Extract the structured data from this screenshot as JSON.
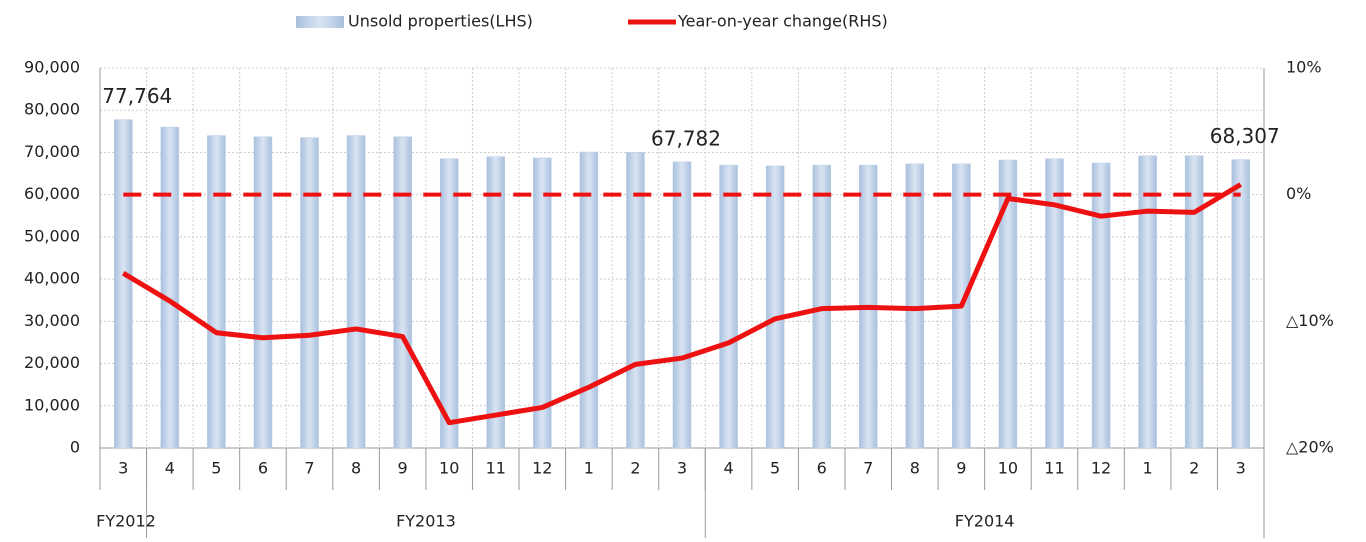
{
  "chart_data": {
    "type": "bar_line",
    "categories": [
      "3",
      "4",
      "5",
      "6",
      "7",
      "8",
      "9",
      "10",
      "11",
      "12",
      "1",
      "2",
      "3",
      "4",
      "5",
      "6",
      "7",
      "8",
      "9",
      "10",
      "11",
      "12",
      "1",
      "2",
      "3"
    ],
    "groups": [
      {
        "label": "FY2012",
        "span": 1
      },
      {
        "label": "FY2013",
        "span": 12
      },
      {
        "label": "FY2014",
        "span": 12
      }
    ],
    "series": [
      {
        "name": "Unsold properties(LHS)",
        "type": "bar",
        "color": "#b8cce4",
        "values": [
          77764,
          76000,
          74000,
          73700,
          73500,
          74000,
          73700,
          68500,
          69000,
          68700,
          70100,
          70000,
          67782,
          67000,
          66800,
          67000,
          67000,
          67300,
          67300,
          68200,
          68500,
          67500,
          69200,
          69200,
          68307
        ],
        "value_labels": [
          "77,764",
          null,
          null,
          null,
          null,
          null,
          null,
          null,
          null,
          null,
          null,
          null,
          "67,782",
          null,
          null,
          null,
          null,
          null,
          null,
          null,
          null,
          null,
          null,
          null,
          "68,307"
        ]
      },
      {
        "name": "Year-on-year change(RHS)",
        "type": "line",
        "axis": "y2",
        "color": "#ee1111",
        "values": [
          -6.2,
          -8.4,
          -10.9,
          -11.3,
          -11.1,
          -10.6,
          -11.2,
          -18.0,
          -17.4,
          -16.8,
          -15.2,
          -13.4,
          -12.9,
          -11.7,
          -9.8,
          -9.0,
          -8.9,
          -9.0,
          -8.8,
          -0.3,
          -0.8,
          -1.7,
          -1.3,
          -1.4,
          0.8
        ]
      }
    ],
    "ylim": [
      0,
      90000
    ],
    "yticks": [
      0,
      {
        "value": 10000,
        "label": "10,000"
      },
      {
        "value": 20000,
        "label": "20,000"
      },
      {
        "value": 30000,
        "label": "30,000"
      },
      {
        "value": 40000,
        "label": "40,000"
      },
      {
        "value": 50000,
        "label": "50,000"
      },
      {
        "value": 60000,
        "label": "60,000"
      },
      {
        "value": 70000,
        "label": "70,000"
      },
      {
        "value": 80000,
        "label": "80,000"
      },
      {
        "value": 90000,
        "label": "90,000"
      }
    ],
    "y2lim": [
      -20,
      10
    ],
    "y2ticks": [
      {
        "value": 10,
        "label": "10%"
      },
      {
        "value": 0,
        "label": "0%"
      },
      {
        "value": -10,
        "label": "△10%"
      },
      {
        "value": -20,
        "label": "△20%"
      }
    ],
    "y2_reference_line": 0,
    "grid": true,
    "legend": "top"
  }
}
